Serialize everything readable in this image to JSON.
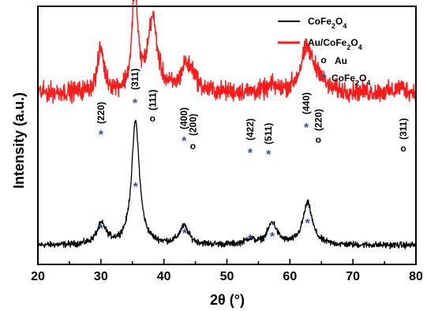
{
  "chart_data": {
    "type": "line",
    "xlabel": "2θ (°)",
    "ylabel": "Intensity (a.u.)",
    "xlim": [
      20,
      80
    ],
    "x_ticks": [
      20,
      30,
      40,
      50,
      60,
      70,
      80
    ],
    "y_ticks_shown": false,
    "colors": {
      "cofe2o4": "#000000",
      "au_cofe2o4": "#ff1a1a",
      "star": "#3a4fa0"
    },
    "series": [
      {
        "name": "CoFe2O4",
        "name_parts": {
          "base": "CoFe",
          "sub1": "2",
          "mid": "O",
          "sub2": "4"
        },
        "color": "#000000",
        "baseline": 0.04,
        "noise": 0.015,
        "peaks": [
          {
            "x": 30.1,
            "height": 0.11,
            "width": 0.9
          },
          {
            "x": 35.5,
            "height": 0.68,
            "width": 0.75
          },
          {
            "x": 43.2,
            "height": 0.1,
            "width": 0.9
          },
          {
            "x": 53.6,
            "height": 0.03,
            "width": 0.9
          },
          {
            "x": 57.2,
            "height": 0.12,
            "width": 0.9
          },
          {
            "x": 62.8,
            "height": 0.23,
            "width": 0.9
          }
        ]
      },
      {
        "name": "Au/CoFe2O4",
        "name_parts": {
          "base": "Au/CoFe",
          "sub1": "2",
          "mid": "O",
          "sub2": "4"
        },
        "color": "#ff1a1a",
        "baseline": 0.88,
        "noise": 0.045,
        "peaks": [
          {
            "x": 30.0,
            "height": 0.24,
            "width": 0.6
          },
          {
            "x": 35.4,
            "height": 0.58,
            "width": 0.5
          },
          {
            "x": 38.2,
            "height": 0.4,
            "width": 0.9
          },
          {
            "x": 43.4,
            "height": 0.13,
            "width": 0.8
          },
          {
            "x": 44.6,
            "height": 0.08,
            "width": 0.8
          },
          {
            "x": 57.2,
            "height": 0.03,
            "width": 0.8
          },
          {
            "x": 62.7,
            "height": 0.24,
            "width": 1.2
          },
          {
            "x": 64.6,
            "height": 0.06,
            "width": 0.8
          },
          {
            "x": 77.6,
            "height": 0.03,
            "width": 0.8
          }
        ]
      }
    ],
    "markers": {
      "star_symbol": "*",
      "o_symbol": "o",
      "upper": [
        {
          "x": 30.0,
          "symbol": "*",
          "label": "(220)"
        },
        {
          "x": 35.4,
          "symbol": "*",
          "label": "(311)"
        },
        {
          "x": 38.2,
          "symbol": "o",
          "label": "(111)"
        },
        {
          "x": 43.2,
          "symbol": "*",
          "label": "(400)"
        },
        {
          "x": 44.6,
          "symbol": "o",
          "label": "(200)"
        },
        {
          "x": 53.7,
          "symbol": "*",
          "label": "(422)"
        },
        {
          "x": 56.6,
          "symbol": "*",
          "label": "(511)"
        },
        {
          "x": 62.6,
          "symbol": "*",
          "label": "(440)"
        },
        {
          "x": 64.5,
          "symbol": "o",
          "label": "(220)"
        },
        {
          "x": 78.0,
          "symbol": "o",
          "label": "(311)"
        }
      ],
      "lower": [
        {
          "x": 30.0,
          "symbol": "*"
        },
        {
          "x": 35.5,
          "symbol": "*"
        },
        {
          "x": 43.3,
          "symbol": "*"
        },
        {
          "x": 53.7,
          "symbol": "*"
        },
        {
          "x": 57.2,
          "symbol": "*"
        },
        {
          "x": 62.8,
          "symbol": "*"
        }
      ]
    },
    "legend": {
      "placement": "top-right",
      "entries": [
        {
          "series": "CoFe2O4",
          "kind": "line"
        },
        {
          "series": "Au/CoFe2O4",
          "kind": "line"
        },
        {
          "symbol": "o",
          "text": "Au",
          "kind": "symbol"
        },
        {
          "symbol": "*",
          "text": "CoFe2O4",
          "parts": {
            "base": "CoFe",
            "sub1": "2",
            "mid": "O",
            "sub2": "4"
          },
          "kind": "symbol"
        }
      ]
    }
  }
}
